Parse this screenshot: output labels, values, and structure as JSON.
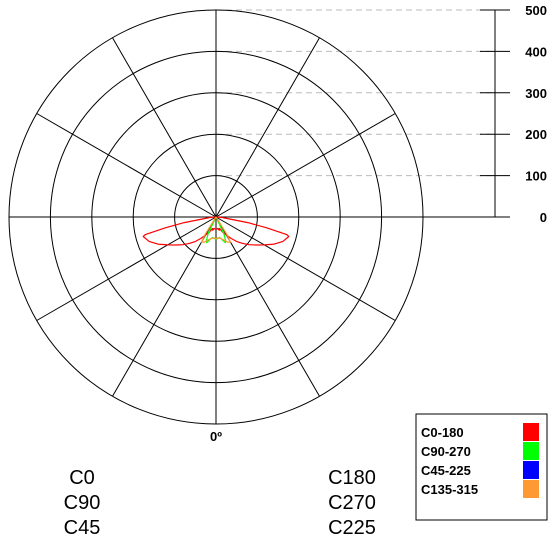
{
  "chart_data": {
    "type": "polar",
    "title": "",
    "radial_axis": {
      "ticks": [
        0,
        100,
        200,
        300,
        400,
        500
      ],
      "tick_labels": [
        "0",
        "100",
        "200",
        "300",
        "400",
        "500"
      ],
      "rmax": 500
    },
    "angle_label": "0º",
    "angular_gridlines_deg": [
      0,
      30,
      60,
      90,
      120,
      150,
      180,
      210,
      240,
      270,
      300,
      330
    ],
    "legend_placement": "bottom-right",
    "legend": [
      {
        "name": "C0-180",
        "color": "#ff0000"
      },
      {
        "name": "C90-270",
        "color": "#00ff00"
      },
      {
        "name": "C45-225",
        "color": "#0000ff"
      },
      {
        "name": "C135-315",
        "color": "#ff9933"
      }
    ],
    "plane_labels_left": [
      "C0",
      "C90",
      "C45"
    ],
    "plane_labels_right": [
      "C180",
      "C270",
      "C225"
    ],
    "angle_convention": "degrees from nadir (0º = straight down), positive toward the right side",
    "series": [
      {
        "name": "C0-180",
        "color": "#ff0000",
        "points": [
          {
            "angle": -90,
            "r": 0
          },
          {
            "angle": -85,
            "r": 15
          },
          {
            "angle": -80,
            "r": 78
          },
          {
            "angle": -78,
            "r": 125
          },
          {
            "angle": -76,
            "r": 176
          },
          {
            "angle": -75,
            "r": 182
          },
          {
            "angle": -70,
            "r": 172
          },
          {
            "angle": -65,
            "r": 155
          },
          {
            "angle": -60,
            "r": 135
          },
          {
            "angle": -55,
            "r": 118
          },
          {
            "angle": -50,
            "r": 104
          },
          {
            "angle": -45,
            "r": 90
          },
          {
            "angle": -40,
            "r": 77
          },
          {
            "angle": -35,
            "r": 63
          },
          {
            "angle": -30,
            "r": 50
          },
          {
            "angle": -25,
            "r": 42
          },
          {
            "angle": -20,
            "r": 33
          },
          {
            "angle": -17,
            "r": 29
          },
          {
            "angle": -14,
            "r": 33
          },
          {
            "angle": -10,
            "r": 28
          },
          {
            "angle": -5,
            "r": 29
          },
          {
            "angle": 0,
            "r": 30
          },
          {
            "angle": 5,
            "r": 29
          },
          {
            "angle": 10,
            "r": 28
          },
          {
            "angle": 14,
            "r": 33
          },
          {
            "angle": 17,
            "r": 29
          },
          {
            "angle": 20,
            "r": 33
          },
          {
            "angle": 25,
            "r": 42
          },
          {
            "angle": 30,
            "r": 50
          },
          {
            "angle": 35,
            "r": 63
          },
          {
            "angle": 40,
            "r": 77
          },
          {
            "angle": 45,
            "r": 90
          },
          {
            "angle": 50,
            "r": 104
          },
          {
            "angle": 55,
            "r": 118
          },
          {
            "angle": 60,
            "r": 135
          },
          {
            "angle": 65,
            "r": 155
          },
          {
            "angle": 70,
            "r": 172
          },
          {
            "angle": 75,
            "r": 182
          },
          {
            "angle": 76,
            "r": 176
          },
          {
            "angle": 78,
            "r": 125
          },
          {
            "angle": 80,
            "r": 78
          },
          {
            "angle": 85,
            "r": 15
          },
          {
            "angle": 90,
            "r": 0
          }
        ]
      },
      {
        "name": "C90-270",
        "color": "#00ff00",
        "points": [
          {
            "angle": -30,
            "r": 0
          },
          {
            "angle": -25,
            "r": 45
          },
          {
            "angle": -22,
            "r": 64
          },
          {
            "angle": -20,
            "r": 66
          },
          {
            "angle": -15,
            "r": 56
          },
          {
            "angle": -10,
            "r": 50
          },
          {
            "angle": -5,
            "r": 52
          },
          {
            "angle": 0,
            "r": 53
          },
          {
            "angle": 5,
            "r": 52
          },
          {
            "angle": 10,
            "r": 50
          },
          {
            "angle": 15,
            "r": 56
          },
          {
            "angle": 20,
            "r": 66
          },
          {
            "angle": 22,
            "r": 64
          },
          {
            "angle": 25,
            "r": 45
          },
          {
            "angle": 30,
            "r": 0
          }
        ]
      },
      {
        "name": "C135-315",
        "color": "#ff9933",
        "points": [
          {
            "angle": -34,
            "r": 0
          },
          {
            "angle": -32,
            "r": 50
          },
          {
            "angle": -30,
            "r": 70
          },
          {
            "angle": -25,
            "r": 67
          },
          {
            "angle": -20,
            "r": 60
          },
          {
            "angle": -15,
            "r": 55
          },
          {
            "angle": -10,
            "r": 52
          },
          {
            "angle": -5,
            "r": 51
          },
          {
            "angle": 0,
            "r": 52
          },
          {
            "angle": 5,
            "r": 51
          },
          {
            "angle": 10,
            "r": 52
          },
          {
            "angle": 15,
            "r": 55
          },
          {
            "angle": 20,
            "r": 60
          },
          {
            "angle": 25,
            "r": 67
          },
          {
            "angle": 30,
            "r": 70
          },
          {
            "angle": 32,
            "r": 50
          },
          {
            "angle": 34,
            "r": 0
          }
        ]
      }
    ]
  },
  "colors": {
    "grid": "#000000",
    "dashed_grid": "#bbbbbb",
    "background": "#ffffff"
  }
}
